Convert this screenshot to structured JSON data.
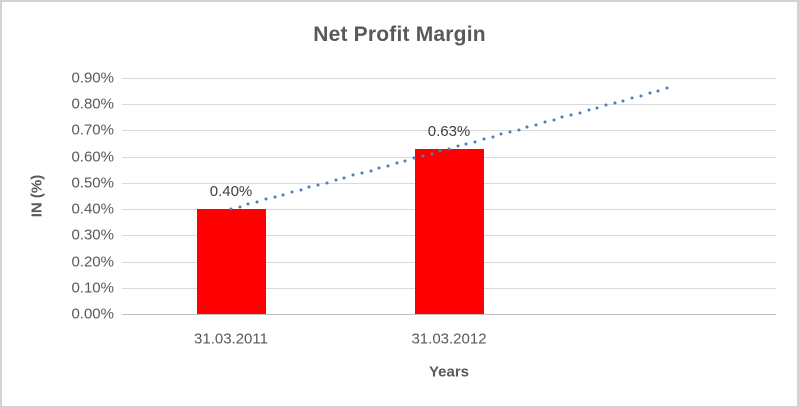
{
  "chart_data": {
    "type": "bar",
    "title": "Net Profit Margin",
    "xlabel": "Years",
    "ylabel": "IN (%)",
    "categories": [
      "31.03.2011",
      "31.03.2012"
    ],
    "values": [
      0.4,
      0.63
    ],
    "data_labels": [
      "0.40%",
      "0.63%"
    ],
    "values_unit": "percent",
    "ylim": [
      0.0,
      0.9
    ],
    "yticks": [
      0.0,
      0.1,
      0.2,
      0.3,
      0.4,
      0.5,
      0.6,
      0.7,
      0.8,
      0.9
    ],
    "ytick_labels": [
      "0.00%",
      "0.10%",
      "0.20%",
      "0.30%",
      "0.40%",
      "0.50%",
      "0.60%",
      "0.70%",
      "0.80%",
      "0.90%"
    ],
    "grid": true,
    "legend": false,
    "bar_color": "#FF0000",
    "trendline": {
      "type": "linear",
      "line_style": "dotted",
      "color": "#4A7EBB",
      "start_value": 0.4,
      "end_value": 0.86,
      "forecast_periods": 1
    },
    "colors": {
      "title_text": "#595959",
      "axis_text": "#595959",
      "data_label_text": "#404040",
      "gridline": "#D9D9D9",
      "axis_line": "#BFBFBF",
      "background": "#FFFFFF"
    }
  }
}
